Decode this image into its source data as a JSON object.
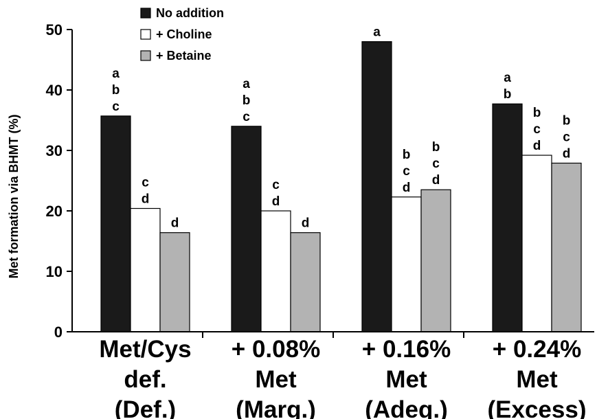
{
  "chart_data": {
    "type": "bar",
    "categories": [
      [
        "Met/Cys",
        "def.",
        "(Def.)"
      ],
      [
        "+ 0.08%",
        "Met",
        "(Marg.)"
      ],
      [
        "+ 0.16%",
        "Met",
        "(Adeq.)"
      ],
      [
        "+ 0.24%",
        "Met",
        "(Excess)"
      ]
    ],
    "series": [
      {
        "name": "No addition",
        "color": "#1a1a1a",
        "values": [
          35.7,
          34.0,
          48.0,
          37.7
        ]
      },
      {
        "name": "+ Choline",
        "color": "#ffffff",
        "values": [
          20.4,
          20.0,
          22.3,
          29.2
        ]
      },
      {
        "name": "+ Betaine",
        "color": "#b3b3b3",
        "values": [
          16.4,
          16.4,
          23.5,
          27.9
        ]
      }
    ],
    "significance_letters": [
      [
        [
          "a",
          "b",
          "c"
        ],
        [
          "c",
          "d"
        ],
        [
          "d"
        ]
      ],
      [
        [
          "a",
          "b",
          "c"
        ],
        [
          "c",
          "d"
        ],
        [
          "d"
        ]
      ],
      [
        [
          "a"
        ],
        [
          "b",
          "c",
          "d"
        ],
        [
          "b",
          "c",
          "d"
        ]
      ],
      [
        [
          "a",
          "b"
        ],
        [
          "b",
          "c",
          "d"
        ],
        [
          "b",
          "c",
          "d"
        ]
      ]
    ],
    "ylabel": "Met formation via BHMT (%)",
    "ylim": [
      0,
      50
    ],
    "yticks": [
      0,
      10,
      20,
      30,
      40,
      50
    ],
    "legend_position": "top-left",
    "grid": false
  }
}
